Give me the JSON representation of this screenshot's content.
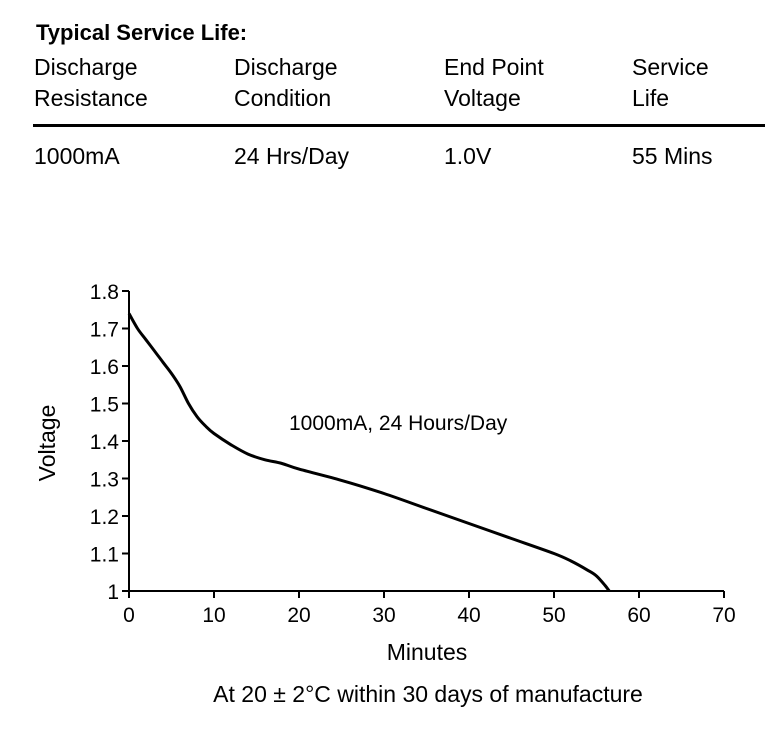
{
  "table": {
    "title": "Typical Service Life:",
    "headers": [
      [
        "Discharge",
        "Resistance"
      ],
      [
        "Discharge",
        "Condition"
      ],
      [
        "End Point",
        "Voltage"
      ],
      [
        "Service",
        "Life"
      ]
    ],
    "row": [
      "1000mA",
      "24 Hrs/Day",
      "1.0V",
      "55 Mins"
    ]
  },
  "chart_data": {
    "type": "line",
    "xlabel": "Minutes",
    "ylabel": "Voltage",
    "xlim": [
      0,
      70
    ],
    "ylim": [
      1,
      1.8
    ],
    "xticks": [
      "0",
      "10",
      "20",
      "30",
      "40",
      "50",
      "60",
      "70"
    ],
    "yticks": [
      "1",
      "1.1",
      "1.2",
      "1.3",
      "1.4",
      "1.5",
      "1.6",
      "1.7",
      "1.8"
    ],
    "annotation": "1000mA, 24 Hours/Day",
    "caption": "At 20 ± 2°C within 30 days of manufacture",
    "series": [
      {
        "name": "1000mA, 24 Hours/Day",
        "x": [
          0,
          1,
          2,
          3,
          4,
          5,
          6,
          7,
          8,
          9,
          10,
          12,
          14,
          16,
          18,
          20,
          25,
          30,
          35,
          40,
          45,
          50,
          52,
          54,
          55,
          56,
          56.5
        ],
        "y": [
          1.74,
          1.7,
          1.67,
          1.64,
          1.61,
          1.58,
          1.545,
          1.5,
          1.465,
          1.44,
          1.42,
          1.39,
          1.365,
          1.35,
          1.34,
          1.325,
          1.295,
          1.26,
          1.22,
          1.18,
          1.14,
          1.1,
          1.08,
          1.055,
          1.04,
          1.015,
          1.0
        ]
      }
    ]
  }
}
